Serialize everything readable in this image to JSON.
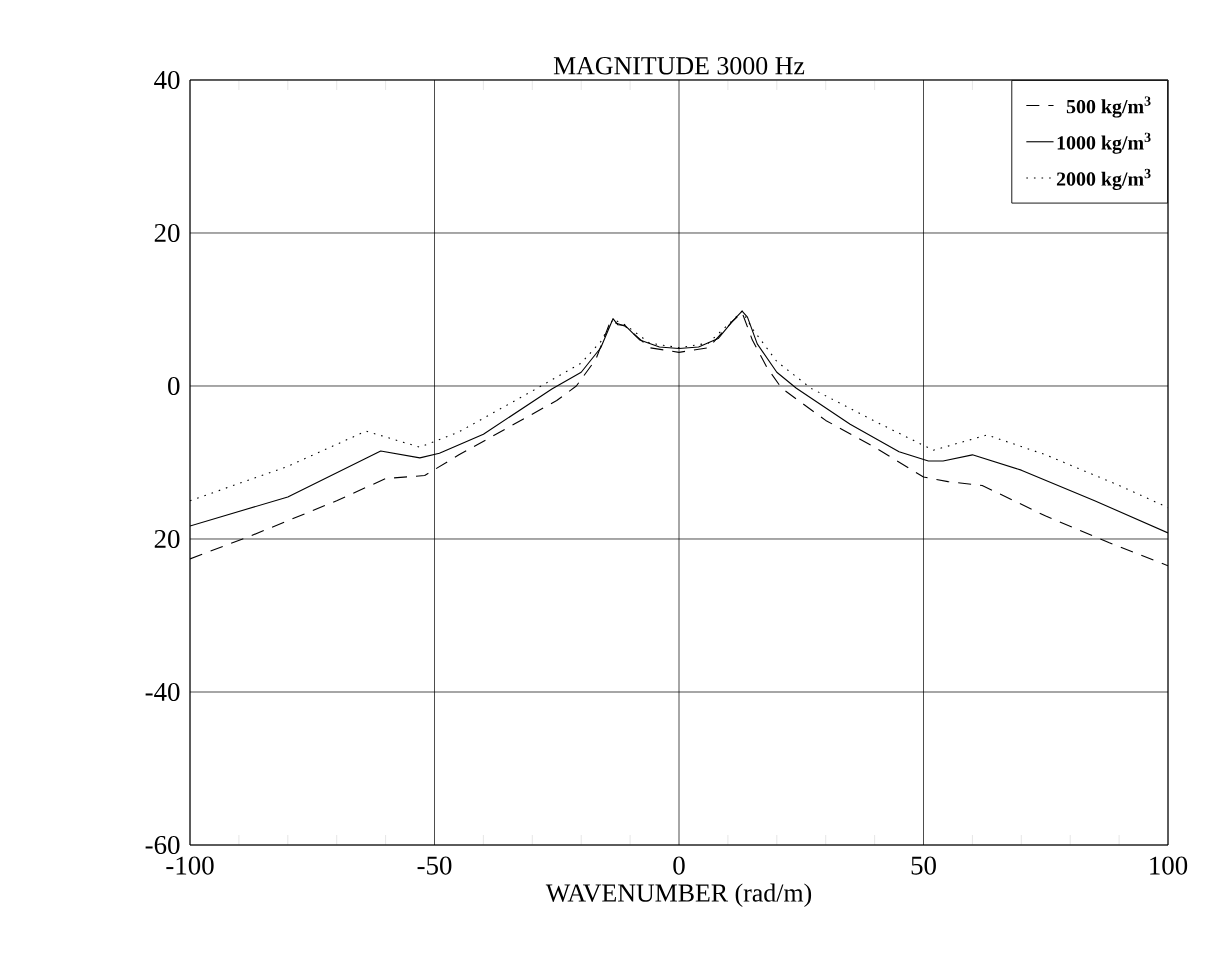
{
  "chart_data": {
    "type": "line",
    "title": "MAGNITUDE 3000 Hz",
    "xlabel": "WAVENUMBER (rad/m)",
    "xlim": [
      -100,
      100
    ],
    "ylim": [
      -60,
      40
    ],
    "xticks": [
      -100,
      -50,
      0,
      50,
      100
    ],
    "yticks": [
      40,
      20,
      0,
      {
        "value": -20,
        "label": "20"
      },
      -40,
      -60
    ],
    "grid": true,
    "legend": "top right",
    "series": [
      {
        "name": "500 kg/m$^{3}$",
        "color": "#000000",
        "line_style": "dashed",
        "x": [
          -100,
          -88,
          -70,
          -60,
          -52,
          -45,
          -25,
          -21,
          -17,
          -14,
          -11,
          -6,
          0,
          6,
          11,
          12.9,
          15,
          18,
          21,
          30,
          40,
          50,
          55,
          62,
          75,
          88,
          100
        ],
        "values": [
          -22.6,
          -19.7,
          -15,
          -12.1,
          -11.7,
          -9,
          -1.9,
          0,
          3.5,
          8.5,
          7.8,
          5,
          4.4,
          5,
          8.5,
          9.6,
          6,
          2.4,
          -0.3,
          -4.5,
          -8,
          -11.9,
          -12.5,
          -13,
          -17,
          -20.5,
          -23.5
        ]
      },
      {
        "name": "1000 kg/m$^{3}$",
        "color": "#000000",
        "line_style": "solid",
        "x": [
          -100,
          -80,
          -61,
          -53,
          -49,
          -40,
          -26,
          -20,
          -16,
          -13.5,
          -12.5,
          -11,
          -8,
          -4,
          0,
          4,
          8,
          11,
          12.9,
          14,
          16,
          20,
          24,
          35,
          45,
          51,
          54,
          60,
          70,
          85,
          100
        ],
        "values": [
          -18.3,
          -14.5,
          -8.5,
          -9.4,
          -8.8,
          -6.3,
          -0.4,
          1.8,
          5,
          8.8,
          8,
          7.9,
          6,
          5.1,
          4.9,
          5.1,
          6.2,
          8.5,
          9.8,
          9,
          5.5,
          1.8,
          -0.3,
          -5,
          -8.6,
          -9.8,
          -9.8,
          -9,
          -11,
          -15,
          -19.2
        ]
      },
      {
        "name": "2000 kg/m$^{3}$",
        "color": "#000000",
        "line_style": "dotted",
        "x": [
          -100,
          -80,
          -64,
          -53,
          -45,
          -29,
          -20,
          -16,
          -13.5,
          -11,
          -6,
          0,
          6,
          11,
          12.9,
          15,
          20,
          27,
          40,
          52,
          63,
          75,
          90,
          100
        ],
        "values": [
          -15,
          -10.5,
          -5.9,
          -8,
          -6,
          -0.3,
          3,
          5.8,
          8.7,
          8,
          5.6,
          5,
          5.6,
          8.6,
          9.8,
          7.5,
          3.2,
          -0.3,
          -4.6,
          -8.4,
          -6.4,
          -9,
          -13,
          -15.9
        ]
      }
    ]
  }
}
